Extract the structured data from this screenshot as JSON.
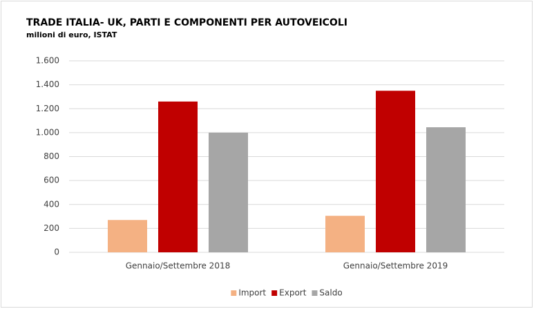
{
  "chart_data": {
    "type": "bar",
    "title": "TRADE ITALIA- UK, PARTI E COMPONENTI PER AUTOVEICOLI",
    "subtitle": "milioni di euro, ISTAT",
    "categories": [
      "Gennaio/Settembre 2018",
      "Gennaio/Settembre 2019"
    ],
    "series": [
      {
        "name": "Import",
        "color": "#f4b183",
        "values": [
          270,
          305
        ]
      },
      {
        "name": "Export",
        "color": "#c00000",
        "values": [
          1260,
          1350
        ]
      },
      {
        "name": "Saldo",
        "color": "#a6a6a6",
        "values": [
          1000,
          1045
        ]
      }
    ],
    "ylim": [
      0,
      1600
    ],
    "yticks": [
      0,
      200,
      400,
      600,
      800,
      {
        "value": 1000,
        "label": "1.000"
      },
      {
        "value": 1200,
        "label": "1.200"
      },
      {
        "value": 1400,
        "label": "1.400"
      },
      {
        "value": 1600,
        "label": "1.600"
      }
    ],
    "grid": true,
    "legend": "bottom"
  }
}
